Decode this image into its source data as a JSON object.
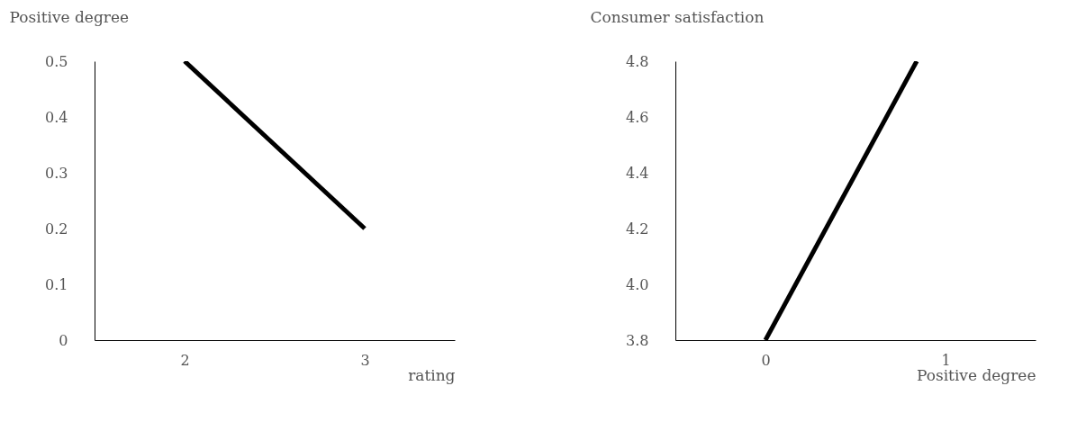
{
  "chart_data": [
    {
      "type": "line",
      "ylabel": "Positive degree",
      "xlabel": "rating",
      "x": [
        2,
        3
      ],
      "xlim": [
        1.5,
        3.5
      ],
      "xticks": [
        2,
        3
      ],
      "ylim": [
        0,
        0.5
      ],
      "yticks": [
        {
          "value": 0,
          "label": "0"
        },
        0.1,
        0.2,
        0.3,
        0.4,
        0.5
      ],
      "grid": false,
      "series": [
        {
          "color": "#000000",
          "values": [
            0.5,
            0.2
          ]
        }
      ]
    },
    {
      "type": "line",
      "ylabel": "Consumer satisfaction",
      "xlabel": "Positive degree",
      "x": [
        0,
        0.84
      ],
      "xlim": [
        -0.5,
        1.5
      ],
      "xticks": [
        0,
        1
      ],
      "ylim": [
        3.8,
        4.8
      ],
      "yticks": [
        3.8,
        {
          "value": 4.0,
          "label": "4.0"
        },
        4.2,
        4.4,
        4.6,
        4.8
      ],
      "grid": false,
      "series": [
        {
          "color": "#000000",
          "values": [
            3.8,
            4.8
          ]
        }
      ]
    }
  ]
}
